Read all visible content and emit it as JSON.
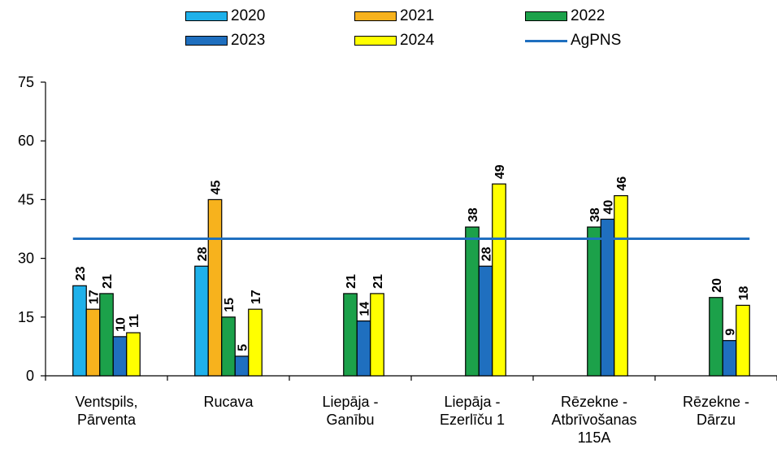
{
  "chart_data": {
    "type": "bar",
    "categories": [
      [
        "Ventspils,",
        "Pārventa"
      ],
      [
        "Rucava"
      ],
      [
        "Liepāja -",
        "Ganību"
      ],
      [
        "Liepāja -",
        "Ezerlīču 1"
      ],
      [
        "Rēzekne -",
        "Atbrīvošanas",
        "115A"
      ],
      [
        "Rēzekne -",
        "Dārzu"
      ]
    ],
    "series": [
      {
        "name": "2020",
        "color": "#1fb1ea",
        "values": [
          23,
          28,
          null,
          null,
          null,
          null
        ]
      },
      {
        "name": "2021",
        "color": "#f7b21d",
        "values": [
          17,
          45,
          null,
          null,
          null,
          null
        ]
      },
      {
        "name": "2022",
        "color": "#1ca14a",
        "values": [
          21,
          15,
          21,
          38,
          38,
          20
        ]
      },
      {
        "name": "2023",
        "color": "#1f6fbf",
        "values": [
          10,
          5,
          14,
          28,
          40,
          9
        ]
      },
      {
        "name": "2024",
        "color": "#ffff00",
        "values": [
          11,
          17,
          21,
          49,
          46,
          18
        ]
      }
    ],
    "reference_line": {
      "name": "AgPNS",
      "value": 35,
      "color": "#1f6fbf"
    },
    "yticks": [
      "0",
      "15",
      "30",
      "45",
      "60",
      "75"
    ],
    "ylim": [
      0,
      75
    ],
    "grid": false,
    "legend_position": "top"
  }
}
